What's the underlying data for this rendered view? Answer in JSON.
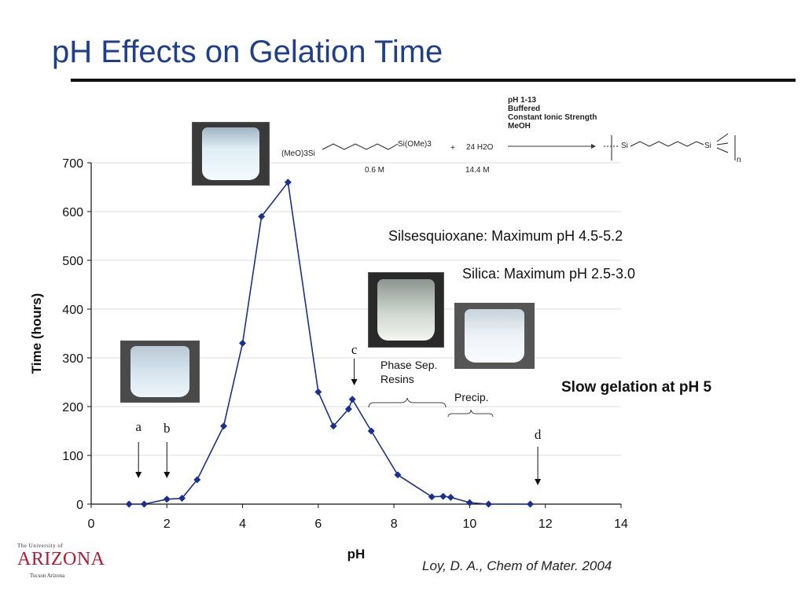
{
  "slide": {
    "title": "pH Effects on Gelation Time",
    "citation": "Loy, D. A., Chem of Mater. 2004"
  },
  "logo": {
    "top": "The University of",
    "main": "ARIZONA",
    "bottom": "Tucson Arizona"
  },
  "reaction": {
    "reactant1": "(MeO)3Si",
    "reactant1_end": "Si(OMe)3",
    "plus": "+",
    "water": "24 H2O",
    "conc1": "0.6 M",
    "conc2": "14.4 M",
    "conditions": [
      "pH 1-13",
      "Buffered",
      "Constant Ionic Strength",
      "MeOH"
    ],
    "product_si_left": "Si",
    "product_si_right": "Si",
    "product_n": "n"
  },
  "annotations": {
    "silsesquioxane": "Silsesquioxane: Maximum pH 4.5-5.2",
    "silica": "Silica: Maximum pH 2.5-3.0",
    "slow": "Slow gelation at pH 5",
    "phase_sep": "Phase Sep.",
    "resins": "Resins",
    "precip": "Precip.",
    "arrow_a": "a",
    "arrow_b": "b",
    "arrow_c": "c",
    "arrow_d": "d"
  },
  "colors": {
    "series": "#1a2f8f",
    "title": "#1f3f8a",
    "logo": "#b31b34",
    "grid": "#dddddd"
  },
  "chart_data": {
    "type": "line",
    "title": "",
    "xlabel": "pH",
    "ylabel": "Time (hours)",
    "xlim": [
      0,
      14
    ],
    "ylim": [
      0,
      700
    ],
    "xticks": [
      0,
      2,
      4,
      6,
      8,
      10,
      12,
      14
    ],
    "yticks": [
      0,
      100,
      200,
      300,
      400,
      500,
      600,
      700
    ],
    "grid": "horizontal",
    "series": [
      {
        "x": [
          1.0,
          1.4,
          2.0,
          2.4,
          2.8,
          3.5,
          4.0,
          4.5,
          5.2,
          6.0,
          6.4,
          6.8,
          6.9,
          7.4,
          8.1,
          9.0,
          9.3,
          9.5,
          10.0,
          10.5,
          11.6
        ],
        "y": [
          0,
          0,
          10,
          12,
          50,
          160,
          330,
          590,
          660,
          230,
          160,
          195,
          215,
          150,
          60,
          15,
          16,
          14,
          3,
          0,
          0
        ]
      }
    ],
    "event_markers": [
      {
        "label": "a",
        "x": 1.25
      },
      {
        "label": "b",
        "x": 2.0
      },
      {
        "label": "c",
        "x": 6.95
      },
      {
        "label": "d",
        "x": 11.8
      }
    ]
  }
}
